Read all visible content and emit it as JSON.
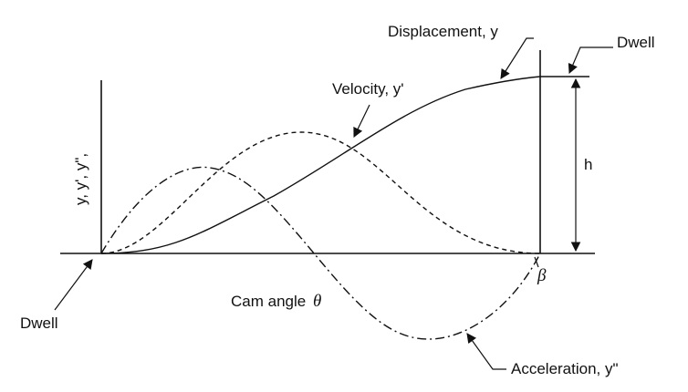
{
  "diagram": {
    "y_axis_label": "y, y', y\",",
    "x_axis_label": "Cam angle",
    "x_axis_symbol": "θ",
    "end_angle_label": "β",
    "height_label": "h",
    "dwell_start_label": "Dwell",
    "dwell_end_label": "Dwell",
    "displacement_label": "Displacement, y",
    "velocity_label": "Velocity, y'",
    "acceleration_label": "Acceleration, y\""
  }
}
